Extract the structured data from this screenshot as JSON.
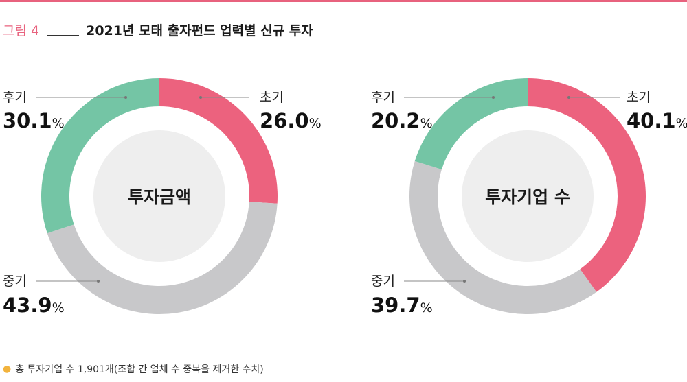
{
  "figure": {
    "label": "그림 4",
    "title": "2021년 모태 출자펀드 업력별 신규 투자"
  },
  "footnote": "총 투자기업 수 1,901개(조합 간 업체 수 중복을 제거한 수치)",
  "colors": {
    "early": "#ec627e",
    "middle": "#c8c8ca",
    "late": "#74c5a5",
    "center": "#eeeeee",
    "accent": "#e8627e",
    "bullet": "#f2b33d"
  },
  "chart_data": [
    {
      "type": "pie",
      "title": "투자금액",
      "unit": "%",
      "categories": [
        "초기",
        "중기",
        "후기"
      ],
      "values": [
        26.0,
        43.9,
        30.1
      ],
      "value_labels": [
        "26.0",
        "43.9",
        "30.1"
      ]
    },
    {
      "type": "pie",
      "title": "투자기업 수",
      "unit": "%",
      "categories": [
        "초기",
        "중기",
        "후기"
      ],
      "values": [
        40.1,
        39.7,
        20.2
      ],
      "value_labels": [
        "40.1",
        "39.7",
        "20.2"
      ]
    }
  ]
}
